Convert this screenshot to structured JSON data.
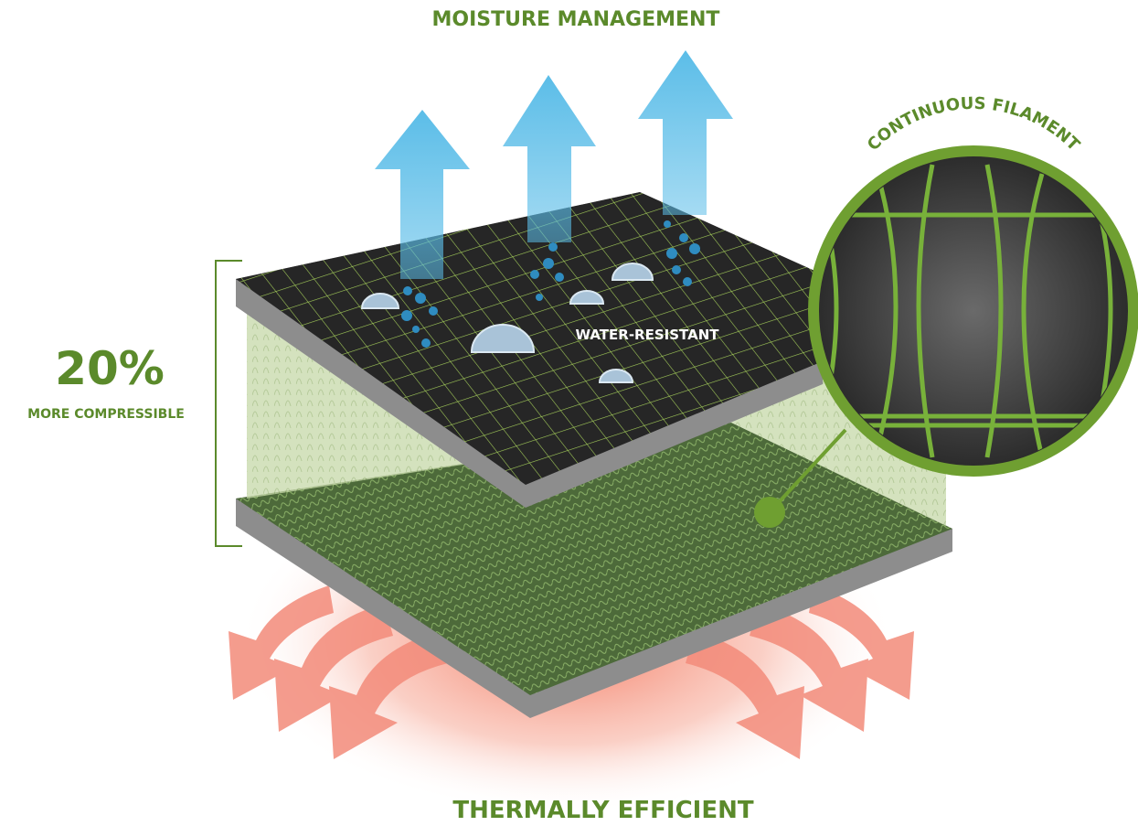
{
  "header": {
    "title": "MOISTURE MANAGEMENT"
  },
  "compression": {
    "figure": "20%",
    "caption": "MORE COMPRESSIBLE"
  },
  "labels": {
    "top_layer": "WATER-RESISTANT",
    "magnifier": "CONTINUOUS FILAMENT"
  },
  "footer": {
    "title": "THERMALLY EFFICIENT"
  }
}
